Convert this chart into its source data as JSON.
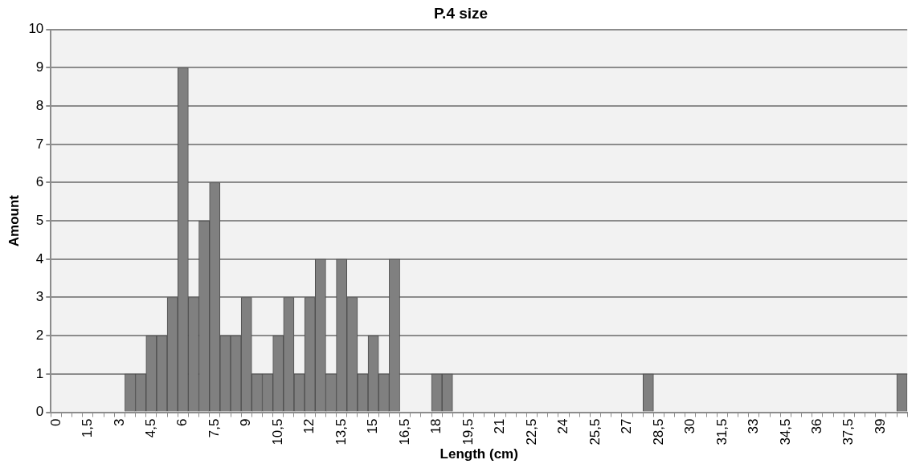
{
  "chart_data": {
    "type": "bar",
    "title": "P.4 size",
    "xlabel": "Length (cm)",
    "ylabel": "Amount",
    "categories": [
      "0",
      null,
      null,
      "1,5",
      null,
      null,
      "3",
      null,
      null,
      "4,5",
      null,
      null,
      "6",
      null,
      null,
      "7,5",
      null,
      null,
      "9",
      null,
      null,
      "10,5",
      null,
      null,
      "12",
      null,
      null,
      "13,5",
      null,
      null,
      "15",
      null,
      null,
      "16,5",
      null,
      null,
      "18",
      null,
      null,
      "19,5",
      null,
      null,
      "21",
      null,
      null,
      "22,5",
      null,
      null,
      "24",
      null,
      null,
      "25,5",
      null,
      null,
      "27",
      null,
      null,
      "28,5",
      null,
      null,
      "30",
      null,
      null,
      "31,5",
      null,
      null,
      "33",
      null,
      null,
      "34,5",
      null,
      null,
      "36",
      null,
      null,
      "37,5",
      null,
      null,
      "39",
      null,
      null
    ],
    "values": [
      0,
      0,
      0,
      0,
      0,
      0,
      0,
      1,
      1,
      2,
      2,
      3,
      9,
      3,
      5,
      6,
      2,
      2,
      3,
      1,
      1,
      2,
      3,
      1,
      3,
      4,
      1,
      4,
      3,
      1,
      2,
      1,
      4,
      0,
      0,
      0,
      1,
      1,
      0,
      0,
      0,
      0,
      0,
      0,
      0,
      0,
      0,
      0,
      0,
      0,
      0,
      0,
      0,
      0,
      0,
      0,
      1,
      0,
      0,
      0,
      0,
      0,
      0,
      0,
      0,
      0,
      0,
      0,
      0,
      0,
      0,
      0,
      0,
      0,
      0,
      0,
      0,
      0,
      0,
      0,
      1
    ],
    "color": "#808080",
    "ylim": [
      0,
      10
    ],
    "yticks": [
      0,
      1,
      2,
      3,
      4,
      5,
      6,
      7,
      8,
      9,
      10
    ],
    "grid": "y",
    "legend": false
  }
}
